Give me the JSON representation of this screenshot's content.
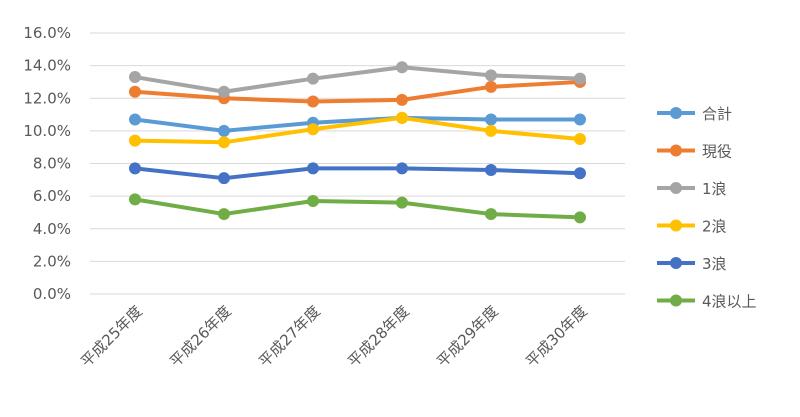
{
  "chart_data": {
    "type": "line",
    "categories": [
      "平成25年度",
      "平成26年度",
      "平成27年度",
      "平成28年度",
      "平成29年度",
      "平成30年度"
    ],
    "ylim": [
      0,
      16
    ],
    "yticks": [
      0,
      2,
      4,
      6,
      8,
      10,
      12,
      14,
      16
    ],
    "ytick_labels": [
      "0.0%",
      "2.0%",
      "4.0%",
      "6.0%",
      "8.0%",
      "10.0%",
      "12.0%",
      "14.0%",
      "16.0%"
    ],
    "grid": true,
    "legend_position": "right",
    "series": [
      {
        "name": "合計",
        "color": "#5b9bd5",
        "values": [
          10.7,
          10.0,
          10.5,
          10.8,
          10.7,
          10.7
        ]
      },
      {
        "name": "現役",
        "color": "#ed7d31",
        "values": [
          12.4,
          12.0,
          11.8,
          11.9,
          12.7,
          13.0
        ]
      },
      {
        "name": "1浪",
        "color": "#a5a5a5",
        "values": [
          13.3,
          12.4,
          13.2,
          13.9,
          13.4,
          13.2
        ]
      },
      {
        "name": "2浪",
        "color": "#ffc000",
        "values": [
          9.4,
          9.3,
          10.1,
          10.8,
          10.0,
          9.5
        ]
      },
      {
        "name": "3浪",
        "color": "#4472c4",
        "values": [
          7.7,
          7.1,
          7.7,
          7.7,
          7.6,
          7.4
        ]
      },
      {
        "name": "4浪以上",
        "color": "#70ad47",
        "values": [
          5.8,
          4.9,
          5.7,
          5.6,
          4.9,
          4.7
        ]
      }
    ]
  }
}
